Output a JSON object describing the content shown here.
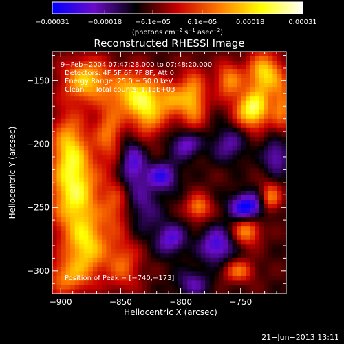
{
  "chart_data": {
    "type": "heatmap",
    "title": "Reconstructed RHESSI Image",
    "xlabel": "Heliocentric X (arcsec)",
    "ylabel": "Heliocentric Y (arcsec)",
    "xlim": [
      -907,
      -712
    ],
    "ylim": [
      -318,
      -127
    ],
    "xticks": [
      -900,
      -850,
      -800,
      -750
    ],
    "xtick_labels": [
      "−900",
      "−850",
      "−800",
      "−750"
    ],
    "yticks": [
      -150,
      -200,
      -250,
      -300
    ],
    "ytick_labels": [
      "−150",
      "−200",
      "−250",
      "−300"
    ],
    "colorbar": {
      "range": [
        -0.00031,
        0.00031
      ],
      "ticks": [
        -0.00031,
        -0.00018,
        -6.1e-05,
        6.1e-05,
        0.00018,
        0.00031
      ],
      "tick_labels": [
        "−0.00031",
        "−0.00018",
        "−6.1e−05",
        "6.1e−05",
        "0.00018",
        "0.00031"
      ],
      "colors": [
        "#0000ff",
        "#6a0cc8",
        "#000000",
        "#c80000",
        "#ff7a00",
        "#ffff00",
        "#ffffff"
      ]
    },
    "annotations": {
      "time_range": "9−Feb−2004 07:47:28.000 to 07:48:20.000",
      "detectors": "Detectors: 4F 5F 6F 7F 8F, Att 0",
      "energy": "Energy Range: 25.0 − 50.0 keV",
      "clean": "Clean     Total counts: 1.13E+03",
      "peak": "Position of Peak = [−740,−173]"
    },
    "peak_position": [
      -740,
      -173
    ],
    "features": [
      {
        "x": -888,
        "y": -238,
        "v": 0.00028,
        "sx": 14,
        "sy": 24
      },
      {
        "x": -893,
        "y": -200,
        "v": 0.00018,
        "sx": 10,
        "sy": 18
      },
      {
        "x": -878,
        "y": -282,
        "v": 0.00022,
        "sx": 12,
        "sy": 16
      },
      {
        "x": -895,
        "y": -305,
        "v": 0.00016,
        "sx": 12,
        "sy": 10
      },
      {
        "x": -878,
        "y": -150,
        "v": 0.00024,
        "sx": 14,
        "sy": 12
      },
      {
        "x": -860,
        "y": -190,
        "v": 0.00016,
        "sx": 8,
        "sy": 16
      },
      {
        "x": -855,
        "y": -250,
        "v": 0.00012,
        "sx": 8,
        "sy": 16
      },
      {
        "x": -848,
        "y": -295,
        "v": 0.00014,
        "sx": 10,
        "sy": 14
      },
      {
        "x": -845,
        "y": -160,
        "v": 0.00018,
        "sx": 10,
        "sy": 12
      },
      {
        "x": -828,
        "y": -170,
        "v": 0.00026,
        "sx": 10,
        "sy": 16
      },
      {
        "x": -808,
        "y": -165,
        "v": 0.00016,
        "sx": 8,
        "sy": 10
      },
      {
        "x": -790,
        "y": -165,
        "v": 0.00022,
        "sx": 8,
        "sy": 16
      },
      {
        "x": -740,
        "y": -173,
        "v": 0.00031,
        "sx": 10,
        "sy": 10
      },
      {
        "x": -730,
        "y": -145,
        "v": 0.00026,
        "sx": 10,
        "sy": 12
      },
      {
        "x": -760,
        "y": -150,
        "v": 0.00018,
        "sx": 8,
        "sy": 10
      },
      {
        "x": -715,
        "y": -170,
        "v": 0.00016,
        "sx": 6,
        "sy": 14
      },
      {
        "x": -785,
        "y": -250,
        "v": 0.00018,
        "sx": 7,
        "sy": 7
      },
      {
        "x": -745,
        "y": -268,
        "v": 0.0002,
        "sx": 8,
        "sy": 8
      },
      {
        "x": -725,
        "y": -242,
        "v": 0.00018,
        "sx": 6,
        "sy": 8
      },
      {
        "x": -752,
        "y": -300,
        "v": 0.00016,
        "sx": 9,
        "sy": 6
      },
      {
        "x": -808,
        "y": -275,
        "v": -0.00016,
        "sx": 9,
        "sy": 9
      },
      {
        "x": -815,
        "y": -225,
        "v": -0.00018,
        "sx": 9,
        "sy": 8
      },
      {
        "x": -795,
        "y": -200,
        "v": -0.00016,
        "sx": 9,
        "sy": 8
      },
      {
        "x": -745,
        "y": -250,
        "v": -0.00025,
        "sx": 10,
        "sy": 8
      },
      {
        "x": -770,
        "y": -280,
        "v": -0.00018,
        "sx": 10,
        "sy": 10
      },
      {
        "x": -840,
        "y": -215,
        "v": -0.00016,
        "sx": 8,
        "sy": 14
      },
      {
        "x": -760,
        "y": -200,
        "v": -0.00012,
        "sx": 10,
        "sy": 10
      },
      {
        "x": -720,
        "y": -210,
        "v": -0.00014,
        "sx": 8,
        "sy": 10
      },
      {
        "x": -790,
        "y": -310,
        "v": -0.00012,
        "sx": 10,
        "sy": 8
      },
      {
        "x": -830,
        "y": -250,
        "v": -0.0001,
        "sx": 10,
        "sy": 14
      }
    ]
  },
  "footer": {
    "date": "21−Jun−2013 13:11"
  }
}
